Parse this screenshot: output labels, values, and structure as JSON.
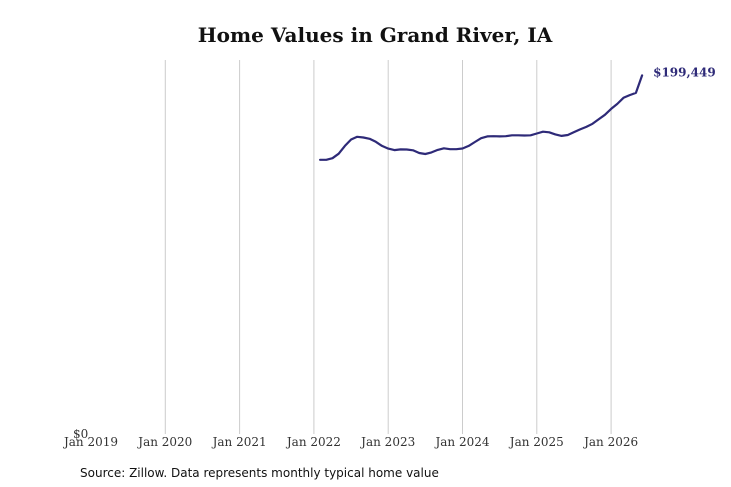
{
  "chart_data": {
    "type": "line",
    "title": "Home Values in Grand River, IA",
    "xlabel": "",
    "ylabel": "",
    "x_ticks": [
      "Jan 2019",
      "Jan 2020",
      "Jan 2021",
      "Jan 2022",
      "Jan 2023",
      "Jan 2024",
      "Jan 2025",
      "Jan 2026"
    ],
    "y_tick_label": "$0",
    "ylim": [
      0,
      208000
    ],
    "xlim": [
      "2019-01",
      "2026-08"
    ],
    "grid": "vertical",
    "line_color": "#2e2a78",
    "gridline_color": "#cccccc",
    "end_label": "$199,449",
    "source": "Source: Zillow. Data represents monthly typical home value",
    "series": [
      {
        "x": [
          "2022-02",
          "2022-03",
          "2022-04",
          "2022-05",
          "2022-06",
          "2022-07",
          "2022-08",
          "2022-09",
          "2022-10",
          "2022-11",
          "2022-12",
          "2023-01",
          "2023-02",
          "2023-03",
          "2023-04",
          "2023-05",
          "2023-06",
          "2023-07",
          "2023-08",
          "2023-09",
          "2023-10",
          "2023-11",
          "2023-12",
          "2024-01",
          "2024-02",
          "2024-03",
          "2024-04",
          "2024-05",
          "2024-06",
          "2024-07",
          "2024-08",
          "2024-09",
          "2024-10",
          "2024-11",
          "2024-12",
          "2025-01",
          "2025-02",
          "2025-03",
          "2025-04",
          "2025-05",
          "2025-06",
          "2025-07",
          "2025-08",
          "2025-09",
          "2025-10",
          "2025-11",
          "2025-12",
          "2026-01",
          "2026-02",
          "2026-03",
          "2026-04",
          "2026-05",
          "2026-06"
        ],
        "values": [
          152500,
          152500,
          153400,
          155900,
          160200,
          163800,
          165300,
          164900,
          164200,
          162500,
          160200,
          158700,
          157900,
          158300,
          158200,
          157800,
          156300,
          155700,
          156600,
          158000,
          158900,
          158400,
          158400,
          158800,
          160200,
          162400,
          164500,
          165500,
          165600,
          165500,
          165600,
          166100,
          166100,
          166000,
          166100,
          167100,
          168100,
          167800,
          166600,
          165800,
          166300,
          167900,
          169400,
          170800,
          172500,
          175100,
          177500,
          180800,
          183600,
          187000,
          188500,
          189700,
          199449
        ]
      }
    ]
  }
}
